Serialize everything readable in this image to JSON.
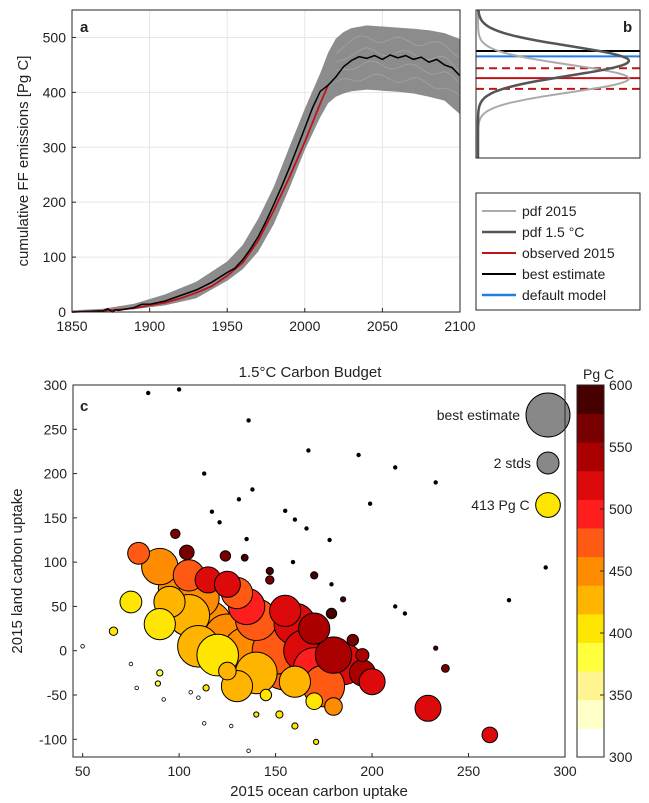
{
  "colors": {
    "pdf2015": "#aaaaaa",
    "pdf15": "#555555",
    "observed": "#c0141a",
    "best": "#000000",
    "default": "#1e7fe0",
    "band": "#8c8c8c",
    "bubble_edge": "#000000"
  },
  "chart_data": [
    {
      "panel": "a",
      "type": "line",
      "title": "",
      "panel_label": "a",
      "xlabel": "",
      "ylabel": "cumulative FF emissions [Pg C]",
      "xlim": [
        1850,
        2100
      ],
      "ylim": [
        0,
        550
      ],
      "xticks": [
        "1850",
        "1900",
        "1950",
        "2000",
        "2050",
        "2100"
      ],
      "yticks": [
        "0",
        "100",
        "200",
        "300",
        "400",
        "500"
      ],
      "series": [
        {
          "key": "band",
          "x": [
            1850,
            1870,
            1890,
            1910,
            1930,
            1950,
            1960,
            1970,
            1980,
            1990,
            2000,
            2010,
            2015,
            2020,
            2025,
            2030,
            2040,
            2050,
            2060,
            2070,
            2080,
            2090,
            2100
          ],
          "lower": [
            0,
            1,
            5,
            12,
            25,
            57,
            78,
            110,
            160,
            225,
            295,
            355,
            380,
            392,
            398,
            402,
            405,
            403,
            401,
            398,
            392,
            385,
            360
          ],
          "upper": [
            3,
            6,
            15,
            32,
            55,
            92,
            122,
            170,
            228,
            300,
            370,
            435,
            472,
            498,
            510,
            517,
            522,
            520,
            518,
            516,
            513,
            508,
            497
          ]
        },
        {
          "key": "best",
          "x": [
            1850,
            1870,
            1873,
            1876,
            1878,
            1880,
            1890,
            1895,
            1900,
            1910,
            1920,
            1930,
            1940,
            1950,
            1955,
            1960,
            1965,
            1970,
            1975,
            1980,
            1985,
            1990,
            1995,
            2000,
            2005,
            2010,
            2015,
            2020,
            2025,
            2030,
            2035,
            2040,
            2045,
            2050,
            2055,
            2060,
            2065,
            2070,
            2075,
            2080,
            2085,
            2090,
            2095,
            2100
          ],
          "y": [
            0,
            2,
            6,
            0,
            4,
            3,
            8,
            14,
            14,
            20,
            30,
            40,
            54,
            72,
            80,
            95,
            115,
            137,
            165,
            196,
            228,
            262,
            298,
            335,
            372,
            402,
            413,
            428,
            447,
            458,
            465,
            462,
            467,
            460,
            468,
            463,
            467,
            460,
            464,
            455,
            460,
            450,
            445,
            430
          ]
        },
        {
          "key": "observed",
          "x": [
            1850,
            1870,
            1890,
            1900,
            1910,
            1920,
            1930,
            1940,
            1950,
            1960,
            1970,
            1980,
            1990,
            2000,
            2010,
            2015
          ],
          "y": [
            0,
            2,
            7,
            12,
            17,
            25,
            35,
            47,
            66,
            90,
            130,
            185,
            245,
            310,
            380,
            413
          ]
        }
      ]
    },
    {
      "panel": "b",
      "type": "line",
      "panel_label": "b",
      "ylim": [
        0,
        550
      ],
      "pdfs": [
        {
          "key": "pdf2015",
          "mean": 411,
          "sd": 28
        },
        {
          "key": "pdf15",
          "mean": 447,
          "sd": 30
        }
      ],
      "hlines": [
        {
          "key": "best",
          "y": 467,
          "style": "solid"
        },
        {
          "key": "default",
          "y": 456,
          "style": "solid"
        },
        {
          "key": "observed",
          "y": 432,
          "style": "dashed"
        },
        {
          "key": "observed",
          "y": 412,
          "style": "solid"
        },
        {
          "key": "observed",
          "y": 390,
          "style": "dashed"
        }
      ]
    },
    {
      "panel": "legend",
      "type": "legend",
      "items": [
        {
          "key": "pdf2015",
          "label": "pdf 2015"
        },
        {
          "key": "pdf15",
          "label": "pdf 1.5 °C"
        },
        {
          "key": "observed",
          "label": "observed 2015"
        },
        {
          "key": "best",
          "label": "best estimate"
        },
        {
          "key": "default",
          "label": "default model"
        }
      ]
    },
    {
      "panel": "c",
      "type": "scatter",
      "title": "1.5°C Carbon Budget",
      "panel_label": "c",
      "xlabel": "2015 ocean carbon uptake",
      "ylabel": "2015 land carbon uptake",
      "xlim": [
        45,
        300
      ],
      "ylim": [
        -120,
        300
      ],
      "xticks": [
        "50",
        "100",
        "150",
        "200",
        "250",
        "300"
      ],
      "yticks": [
        "-100",
        "-50",
        "0",
        "50",
        "100",
        "150",
        "200",
        "250",
        "300"
      ],
      "size_legend": [
        {
          "label": "best estimate",
          "size": 1.0,
          "value": 470
        },
        {
          "label": "2 stds",
          "size": 0.5,
          "value": 470
        },
        {
          "label": "413 Pg C",
          "size": 0.56,
          "value": 413
        }
      ],
      "colorbar": {
        "label": "Pg C",
        "range": [
          300,
          600
        ],
        "ticks": [
          "300",
          "350",
          "400",
          "450",
          "500",
          "550",
          "600"
        ],
        "bins": [
          "#ffffff",
          "#ffffc8",
          "#fff590",
          "#ffff3c",
          "#ffe600",
          "#ffb400",
          "#ff8c00",
          "#ff5a14",
          "#ff1e1e",
          "#dc0a0a",
          "#aa0000",
          "#780000",
          "#460000"
        ]
      },
      "points": [
        {
          "x": 84,
          "y": 291,
          "s": 0.07,
          "v": 600
        },
        {
          "x": 100,
          "y": 295,
          "s": 0.07,
          "v": 600
        },
        {
          "x": 136,
          "y": 260,
          "s": 0.07,
          "v": 600
        },
        {
          "x": 167,
          "y": 226,
          "s": 0.07,
          "v": 600
        },
        {
          "x": 193,
          "y": 221,
          "s": 0.07,
          "v": 600
        },
        {
          "x": 212,
          "y": 207,
          "s": 0.07,
          "v": 600
        },
        {
          "x": 113,
          "y": 200,
          "s": 0.07,
          "v": 600
        },
        {
          "x": 233,
          "y": 190,
          "s": 0.07,
          "v": 600
        },
        {
          "x": 138,
          "y": 182,
          "s": 0.07,
          "v": 600
        },
        {
          "x": 131,
          "y": 171,
          "s": 0.07,
          "v": 600
        },
        {
          "x": 199,
          "y": 166,
          "s": 0.07,
          "v": 600
        },
        {
          "x": 117,
          "y": 157,
          "s": 0.07,
          "v": 600
        },
        {
          "x": 155,
          "y": 158,
          "s": 0.07,
          "v": 600
        },
        {
          "x": 121,
          "y": 145,
          "s": 0.07,
          "v": 600
        },
        {
          "x": 160,
          "y": 148,
          "s": 0.07,
          "v": 600
        },
        {
          "x": 166,
          "y": 138,
          "s": 0.07,
          "v": 600
        },
        {
          "x": 98,
          "y": 132,
          "s": 0.18,
          "v": 570
        },
        {
          "x": 135,
          "y": 126,
          "s": 0.07,
          "v": 600
        },
        {
          "x": 178,
          "y": 125,
          "s": 0.07,
          "v": 600
        },
        {
          "x": 104,
          "y": 111,
          "s": 0.28,
          "v": 560
        },
        {
          "x": 124,
          "y": 107,
          "s": 0.2,
          "v": 560
        },
        {
          "x": 159,
          "y": 100,
          "s": 0.07,
          "v": 600
        },
        {
          "x": 134,
          "y": 105,
          "s": 0.13,
          "v": 580
        },
        {
          "x": 147,
          "y": 90,
          "s": 0.14,
          "v": 580
        },
        {
          "x": 290,
          "y": 94,
          "s": 0.07,
          "v": 600
        },
        {
          "x": 170,
          "y": 85,
          "s": 0.14,
          "v": 580
        },
        {
          "x": 147,
          "y": 80,
          "s": 0.16,
          "v": 570
        },
        {
          "x": 179,
          "y": 75,
          "s": 0.07,
          "v": 600
        },
        {
          "x": 185,
          "y": 58,
          "s": 0.1,
          "v": 600
        },
        {
          "x": 271,
          "y": 57,
          "s": 0.07,
          "v": 600
        },
        {
          "x": 212,
          "y": 50,
          "s": 0.07,
          "v": 600
        },
        {
          "x": 217,
          "y": 42,
          "s": 0.07,
          "v": 600
        },
        {
          "x": 179,
          "y": 42,
          "s": 0.2,
          "v": 580
        },
        {
          "x": 190,
          "y": 12,
          "s": 0.22,
          "v": 570
        },
        {
          "x": 195,
          "y": -5,
          "s": 0.25,
          "v": 550
        },
        {
          "x": 233,
          "y": 3,
          "s": 0.08,
          "v": 590
        },
        {
          "x": 238,
          "y": -20,
          "s": 0.15,
          "v": 560
        },
        {
          "x": 50,
          "y": 5,
          "s": 0.07,
          "v": 330
        },
        {
          "x": 66,
          "y": 22,
          "s": 0.16,
          "v": 400
        },
        {
          "x": 75,
          "y": 55,
          "s": 0.42,
          "v": 410
        },
        {
          "x": 79,
          "y": 110,
          "s": 0.42,
          "v": 480
        },
        {
          "x": 75,
          "y": -15,
          "s": 0.07,
          "v": 330
        },
        {
          "x": 78,
          "y": -42,
          "s": 0.07,
          "v": 330
        },
        {
          "x": 89,
          "y": -37,
          "s": 0.1,
          "v": 380
        },
        {
          "x": 92,
          "y": -55,
          "s": 0.07,
          "v": 330
        },
        {
          "x": 90,
          "y": -25,
          "s": 0.12,
          "v": 390
        },
        {
          "x": 110,
          "y": -53,
          "s": 0.07,
          "v": 330
        },
        {
          "x": 106,
          "y": -47,
          "s": 0.07,
          "v": 330
        },
        {
          "x": 114,
          "y": -42,
          "s": 0.12,
          "v": 400
        },
        {
          "x": 113,
          "y": -82,
          "s": 0.07,
          "v": 330
        },
        {
          "x": 127,
          "y": -85,
          "s": 0.07,
          "v": 330
        },
        {
          "x": 136,
          "y": -113,
          "s": 0.07,
          "v": 330
        },
        {
          "x": 140,
          "y": -72,
          "s": 0.1,
          "v": 400
        },
        {
          "x": 145,
          "y": -50,
          "s": 0.22,
          "v": 410
        },
        {
          "x": 152,
          "y": -72,
          "s": 0.14,
          "v": 400
        },
        {
          "x": 160,
          "y": -85,
          "s": 0.12,
          "v": 400
        },
        {
          "x": 171,
          "y": -103,
          "s": 0.1,
          "v": 400
        },
        {
          "x": 170,
          "y": -57,
          "s": 0.32,
          "v": 400
        },
        {
          "x": 180,
          "y": -63,
          "s": 0.34,
          "v": 440
        },
        {
          "x": 125,
          "y": -23,
          "s": 0.34,
          "v": 420
        },
        {
          "x": 90,
          "y": 95,
          "s": 0.7,
          "v": 450
        },
        {
          "x": 105,
          "y": 85,
          "s": 0.6,
          "v": 470
        },
        {
          "x": 115,
          "y": 80,
          "s": 0.5,
          "v": 520
        },
        {
          "x": 100,
          "y": 70,
          "s": 0.8,
          "v": 460
        },
        {
          "x": 95,
          "y": 55,
          "s": 0.6,
          "v": 420
        },
        {
          "x": 110,
          "y": 60,
          "s": 0.8,
          "v": 450
        },
        {
          "x": 125,
          "y": 75,
          "s": 0.5,
          "v": 520
        },
        {
          "x": 130,
          "y": 65,
          "s": 0.6,
          "v": 480
        },
        {
          "x": 105,
          "y": 40,
          "s": 0.8,
          "v": 430
        },
        {
          "x": 90,
          "y": 30,
          "s": 0.6,
          "v": 400
        },
        {
          "x": 115,
          "y": 30,
          "s": 0.9,
          "v": 440
        },
        {
          "x": 135,
          "y": 50,
          "s": 0.7,
          "v": 500
        },
        {
          "x": 140,
          "y": 35,
          "s": 0.8,
          "v": 480
        },
        {
          "x": 155,
          "y": 45,
          "s": 0.6,
          "v": 520
        },
        {
          "x": 160,
          "y": 30,
          "s": 0.8,
          "v": 530
        },
        {
          "x": 170,
          "y": 25,
          "s": 0.6,
          "v": 540
        },
        {
          "x": 150,
          "y": 20,
          "s": 0.9,
          "v": 490
        },
        {
          "x": 125,
          "y": 15,
          "s": 0.9,
          "v": 460
        },
        {
          "x": 110,
          "y": 5,
          "s": 0.8,
          "v": 420
        },
        {
          "x": 120,
          "y": -5,
          "s": 0.8,
          "v": 410
        },
        {
          "x": 135,
          "y": 0,
          "s": 0.9,
          "v": 450
        },
        {
          "x": 150,
          "y": 0,
          "s": 0.9,
          "v": 480
        },
        {
          "x": 165,
          "y": 0,
          "s": 0.8,
          "v": 520
        },
        {
          "x": 180,
          "y": -5,
          "s": 0.7,
          "v": 540
        },
        {
          "x": 185,
          "y": -15,
          "s": 0.8,
          "v": 530
        },
        {
          "x": 170,
          "y": -20,
          "s": 0.8,
          "v": 500
        },
        {
          "x": 155,
          "y": -15,
          "s": 1.0,
          "v": 470
        },
        {
          "x": 140,
          "y": -25,
          "s": 0.8,
          "v": 430
        },
        {
          "x": 160,
          "y": -35,
          "s": 0.6,
          "v": 420
        },
        {
          "x": 175,
          "y": -40,
          "s": 0.8,
          "v": 480
        },
        {
          "x": 195,
          "y": -25,
          "s": 0.5,
          "v": 540
        },
        {
          "x": 200,
          "y": -35,
          "s": 0.5,
          "v": 520
        },
        {
          "x": 130,
          "y": -40,
          "s": 0.6,
          "v": 420
        },
        {
          "x": 229,
          "y": -65,
          "s": 0.5,
          "v": 510
        },
        {
          "x": 261,
          "y": -95,
          "s": 0.3,
          "v": 530
        }
      ]
    }
  ]
}
